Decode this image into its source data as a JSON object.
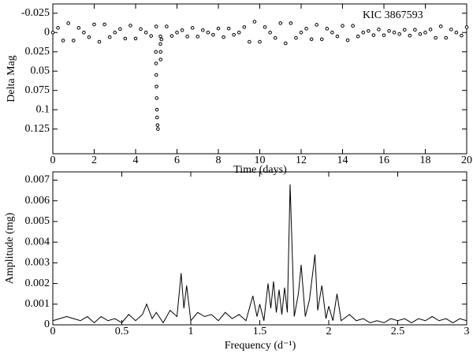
{
  "chart_data": [
    {
      "type": "scatter",
      "annotation": "KIC 3867593",
      "xlabel": "Time (days)",
      "ylabel": "Delta Mag",
      "xlim": [
        0,
        20
      ],
      "xticks": [
        0,
        2,
        4,
        6,
        8,
        10,
        12,
        14,
        16,
        18,
        20
      ],
      "ylim": [
        -0.037,
        0.157
      ],
      "yinvert": true,
      "yticks": [
        -0.025,
        0,
        0.025,
        0.05,
        0.075,
        0.1,
        0.125
      ],
      "color": "#000000",
      "x": [
        0,
        0.25,
        0.5,
        0.75,
        1,
        1.25,
        1.5,
        1.75,
        2,
        2.25,
        2.5,
        2.75,
        3,
        3.25,
        3.5,
        3.75,
        4,
        4.25,
        4.5,
        4.75,
        5,
        5.25,
        5.5,
        5.75,
        6,
        6.25,
        6.5,
        6.75,
        7,
        7.25,
        7.5,
        7.75,
        8,
        8.25,
        8.5,
        8.75,
        9,
        9.25,
        9.5,
        9.75,
        10,
        10.25,
        10.5,
        10.75,
        11,
        11.25,
        11.5,
        11.75,
        12,
        12.25,
        12.5,
        12.75,
        13,
        13.25,
        13.5,
        13.75,
        14,
        14.25,
        14.5,
        14.75,
        15,
        15.25,
        15.5,
        15.75,
        16,
        16.25,
        16.5,
        16.75,
        17,
        17.25,
        17.5,
        17.75,
        18,
        18.25,
        18.5,
        18.75,
        19,
        19.25,
        19.5,
        19.75,
        20,
        4.98,
        4.99,
        5.0,
        5.01,
        5.02,
        5.03,
        5.04,
        5.06,
        5.08,
        5.2,
        5.2,
        5.21,
        5.21
      ],
      "values": [
        0,
        -0.006,
        0.0104,
        -0.012,
        0.0104,
        -0.006,
        0,
        0.006,
        -0.0104,
        0.012,
        -0.0104,
        0.006,
        0,
        -0.0045,
        0.0078,
        -0.009,
        0.0078,
        -0.0045,
        0,
        0.0045,
        -0.0078,
        0.009,
        -0.0078,
        0.0045,
        0,
        -0.003,
        0.0052,
        -0.006,
        0.0052,
        -0.003,
        0,
        0.003,
        -0.0052,
        0.006,
        -0.0052,
        0.003,
        0,
        -0.007,
        0.0121,
        -0.014,
        0.0121,
        -0.007,
        0,
        0.007,
        -0.0121,
        0.014,
        -0.0121,
        0.007,
        0,
        -0.005,
        0.0087,
        -0.01,
        0.0087,
        -0.005,
        0,
        0.005,
        -0.0087,
        0.01,
        -0.0087,
        0.005,
        0,
        -0.002,
        0.0035,
        -0.004,
        0.0035,
        -0.002,
        0,
        0.002,
        -0.0035,
        0.004,
        -0.0035,
        0.002,
        0,
        -0.004,
        0.0069,
        -0.008,
        0.0069,
        -0.004,
        0,
        0.004,
        -0.0069,
        0.025,
        0.04,
        0.055,
        0.07,
        0.085,
        0.1,
        0.11,
        0.12,
        0.125,
        0.005,
        0.015,
        0.025,
        0.035
      ]
    },
    {
      "type": "line",
      "xlabel": "Frequency (d⁻¹)",
      "ylabel": "Amplitude (mg)",
      "xlim": [
        0,
        3
      ],
      "xticks": [
        0,
        0.5,
        1,
        1.5,
        2,
        2.5,
        3
      ],
      "ylim": [
        0,
        0.0074
      ],
      "yticks": [
        0,
        0.001,
        0.002,
        0.003,
        0.004,
        0.005,
        0.006,
        0.007
      ],
      "color": "#000000",
      "x": [
        0,
        0.05,
        0.1,
        0.15,
        0.2,
        0.25,
        0.3,
        0.35,
        0.4,
        0.45,
        0.5,
        0.55,
        0.6,
        0.65,
        0.68,
        0.72,
        0.75,
        0.8,
        0.85,
        0.9,
        0.93,
        0.95,
        0.97,
        1.0,
        1.05,
        1.1,
        1.15,
        1.2,
        1.25,
        1.3,
        1.35,
        1.4,
        1.45,
        1.48,
        1.5,
        1.53,
        1.56,
        1.58,
        1.6,
        1.62,
        1.64,
        1.66,
        1.68,
        1.7,
        1.72,
        1.75,
        1.78,
        1.8,
        1.83,
        1.86,
        1.9,
        1.92,
        1.95,
        1.98,
        2.0,
        2.03,
        2.06,
        2.09,
        2.15,
        2.2,
        2.25,
        2.3,
        2.35,
        2.4,
        2.45,
        2.5,
        2.55,
        2.6,
        2.65,
        2.7,
        2.75,
        2.8,
        2.85,
        2.9,
        2.95,
        3.0
      ],
      "values": [
        0.0002,
        0.0003,
        0.0004,
        0.0003,
        0.0002,
        0.0004,
        0.0001,
        0.0004,
        0.0002,
        0.0003,
        0.0001,
        0.0005,
        0.0002,
        0.0005,
        0.001,
        0.0003,
        0.0006,
        0.0001,
        0.0007,
        0.0004,
        0.0025,
        0.0008,
        0.0019,
        0.0002,
        0.0006,
        0.0004,
        0.0005,
        0.0002,
        0.0006,
        0.0003,
        0.0005,
        0.0002,
        0.0014,
        0.0004,
        0.001,
        0.0002,
        0.002,
        0.0008,
        0.0021,
        0.0006,
        0.0017,
        0.0005,
        0.0018,
        0.0006,
        0.0068,
        0.0004,
        0.0015,
        0.0029,
        0.0004,
        0.0012,
        0.0034,
        0.0007,
        0.0019,
        0.0003,
        0.0009,
        0.0002,
        0.0015,
        0.0002,
        0.0005,
        0.0002,
        0.0003,
        0.0001,
        0.0002,
        0.0001,
        0.0003,
        0.0002,
        0.0003,
        0.0001,
        0.0003,
        0.0002,
        0.0004,
        0.0002,
        0.0003,
        0.0001,
        0.0003,
        0.0002
      ]
    }
  ]
}
